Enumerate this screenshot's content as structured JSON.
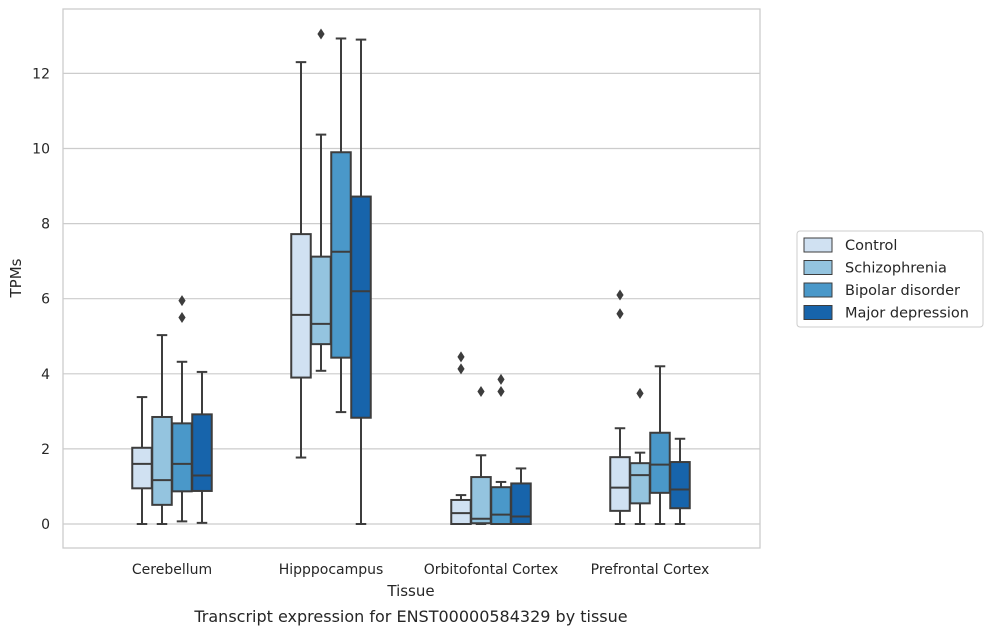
{
  "chart_data": {
    "type": "box",
    "caption": "Transcript expression for ENST00000584329 by tissue",
    "xlabel": "Tissue",
    "ylabel": "TPMs",
    "ylim": [
      -0.65,
      13.7
    ],
    "yticks": [
      0,
      2,
      4,
      6,
      8,
      10,
      12
    ],
    "grid": "horizontal",
    "legend_position": "right",
    "categories": [
      "Cerebellum",
      "Hipppocampus",
      "Orbitofontal Cortex",
      "Prefrontal Cortex"
    ],
    "series": [
      {
        "name": "Control",
        "color": "#d0e1f2",
        "boxes": [
          {
            "whislo": 0.0,
            "q1": 0.95,
            "med": 1.6,
            "q3": 2.03,
            "whishi": 3.38,
            "fliers": []
          },
          {
            "whislo": 1.77,
            "q1": 3.9,
            "med": 5.57,
            "q3": 7.72,
            "whishi": 12.3,
            "fliers": []
          },
          {
            "whislo": 0.0,
            "q1": 0.0,
            "med": 0.29,
            "q3": 0.64,
            "whishi": 0.77,
            "fliers": [
              4.13,
              4.45
            ]
          },
          {
            "whislo": 0.0,
            "q1": 0.35,
            "med": 0.97,
            "q3": 1.78,
            "whishi": 2.55,
            "fliers": [
              5.6,
              6.1
            ]
          }
        ]
      },
      {
        "name": "Schizophrenia",
        "color": "#94c4df",
        "boxes": [
          {
            "whislo": 0.0,
            "q1": 0.51,
            "med": 1.17,
            "q3": 2.85,
            "whishi": 5.03,
            "fliers": []
          },
          {
            "whislo": 4.08,
            "q1": 4.79,
            "med": 5.33,
            "q3": 7.12,
            "whishi": 10.37,
            "fliers": [
              13.05
            ]
          },
          {
            "whislo": 0.0,
            "q1": 0.02,
            "med": 0.14,
            "q3": 1.25,
            "whishi": 1.83,
            "fliers": [
              3.53
            ]
          },
          {
            "whislo": 0.0,
            "q1": 0.55,
            "med": 1.3,
            "q3": 1.62,
            "whishi": 1.9,
            "fliers": [
              3.48
            ]
          }
        ]
      },
      {
        "name": "Bipolar disorder",
        "color": "#4a98c9",
        "boxes": [
          {
            "whislo": 0.07,
            "q1": 0.87,
            "med": 1.6,
            "q3": 2.68,
            "whishi": 4.32,
            "fliers": [
              5.5,
              5.95
            ]
          },
          {
            "whislo": 2.98,
            "q1": 4.43,
            "med": 7.25,
            "q3": 9.9,
            "whishi": 12.93,
            "fliers": []
          },
          {
            "whislo": 0.0,
            "q1": 0.0,
            "med": 0.25,
            "q3": 0.98,
            "whishi": 1.12,
            "fliers": [
              3.53,
              3.85
            ]
          },
          {
            "whislo": 0.0,
            "q1": 0.83,
            "med": 1.58,
            "q3": 2.43,
            "whishi": 4.2,
            "fliers": []
          }
        ]
      },
      {
        "name": "Major depression",
        "color": "#1764ab",
        "boxes": [
          {
            "whislo": 0.03,
            "q1": 0.88,
            "med": 1.29,
            "q3": 2.92,
            "whishi": 4.05,
            "fliers": []
          },
          {
            "whislo": 0.0,
            "q1": 2.83,
            "med": 6.2,
            "q3": 8.72,
            "whishi": 12.9,
            "fliers": []
          },
          {
            "whislo": 0.0,
            "q1": 0.0,
            "med": 0.2,
            "q3": 1.08,
            "whishi": 1.48,
            "fliers": []
          },
          {
            "whislo": 0.0,
            "q1": 0.42,
            "med": 0.92,
            "q3": 1.65,
            "whishi": 2.27,
            "fliers": []
          }
        ]
      }
    ]
  }
}
